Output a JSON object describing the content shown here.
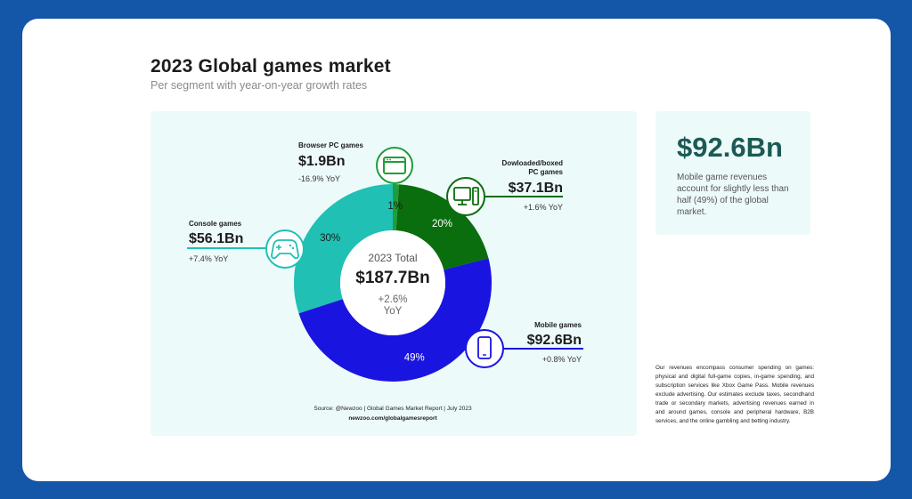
{
  "title": "2023 Global games market",
  "subtitle": "Per segment with year-on-year growth rates",
  "side_panel": {
    "value": "$92.6Bn",
    "description": "Mobile game revenues account for slightly less than half (49%) of the global market."
  },
  "footnote": "Our revenues encompass consumer spending on games: physical and digital full-game copies, in-game spending, and subscription services like Xbox Game Pass. Mobile revenues exclude advertising. Our estimates exclude taxes, secondhand trade or secondary markets, advertising revenues earned in and around games, console and peripheral hardware, B2B services, and the online gambling and betting industry.",
  "source": {
    "line1": "Source: @Newzoo | Global Games Market Report | July 2023",
    "line2": "newzoo.com/globalgamesreport"
  },
  "chart_data": {
    "type": "pie",
    "title": "2023 Global games market",
    "subtitle": "Per segment with year-on-year growth rates",
    "center": {
      "line1": "2023 Total",
      "line2": "$187.7Bn",
      "line3": "+2.6%",
      "line4": "YoY"
    },
    "slices": [
      {
        "label": "Browser PC games",
        "value": 1.9,
        "value_label": "$1.9Bn",
        "percent": 1,
        "percent_label": "1%",
        "yoy": "-16.9% YoY",
        "color": "#1e9e3a",
        "icon": "browser-window-icon"
      },
      {
        "label": "Dowloaded/boxed PC games",
        "value": 37.1,
        "value_label": "$37.1Bn",
        "percent": 20,
        "percent_label": "20%",
        "yoy": "+1.6% YoY",
        "color": "#0a6d0e",
        "icon": "desktop-computer-icon"
      },
      {
        "label": "Mobile games",
        "value": 92.6,
        "value_label": "$92.6Bn",
        "percent": 49,
        "percent_label": "49%",
        "yoy": "+0.8% YoY",
        "color": "#1a14e0",
        "icon": "smartphone-icon"
      },
      {
        "label": "Console games",
        "value": 56.1,
        "value_label": "$56.1Bn",
        "percent": 30,
        "percent_label": "30%",
        "yoy": "+7.4% YoY",
        "color": "#20c0b4",
        "icon": "gamepad-icon"
      }
    ]
  }
}
